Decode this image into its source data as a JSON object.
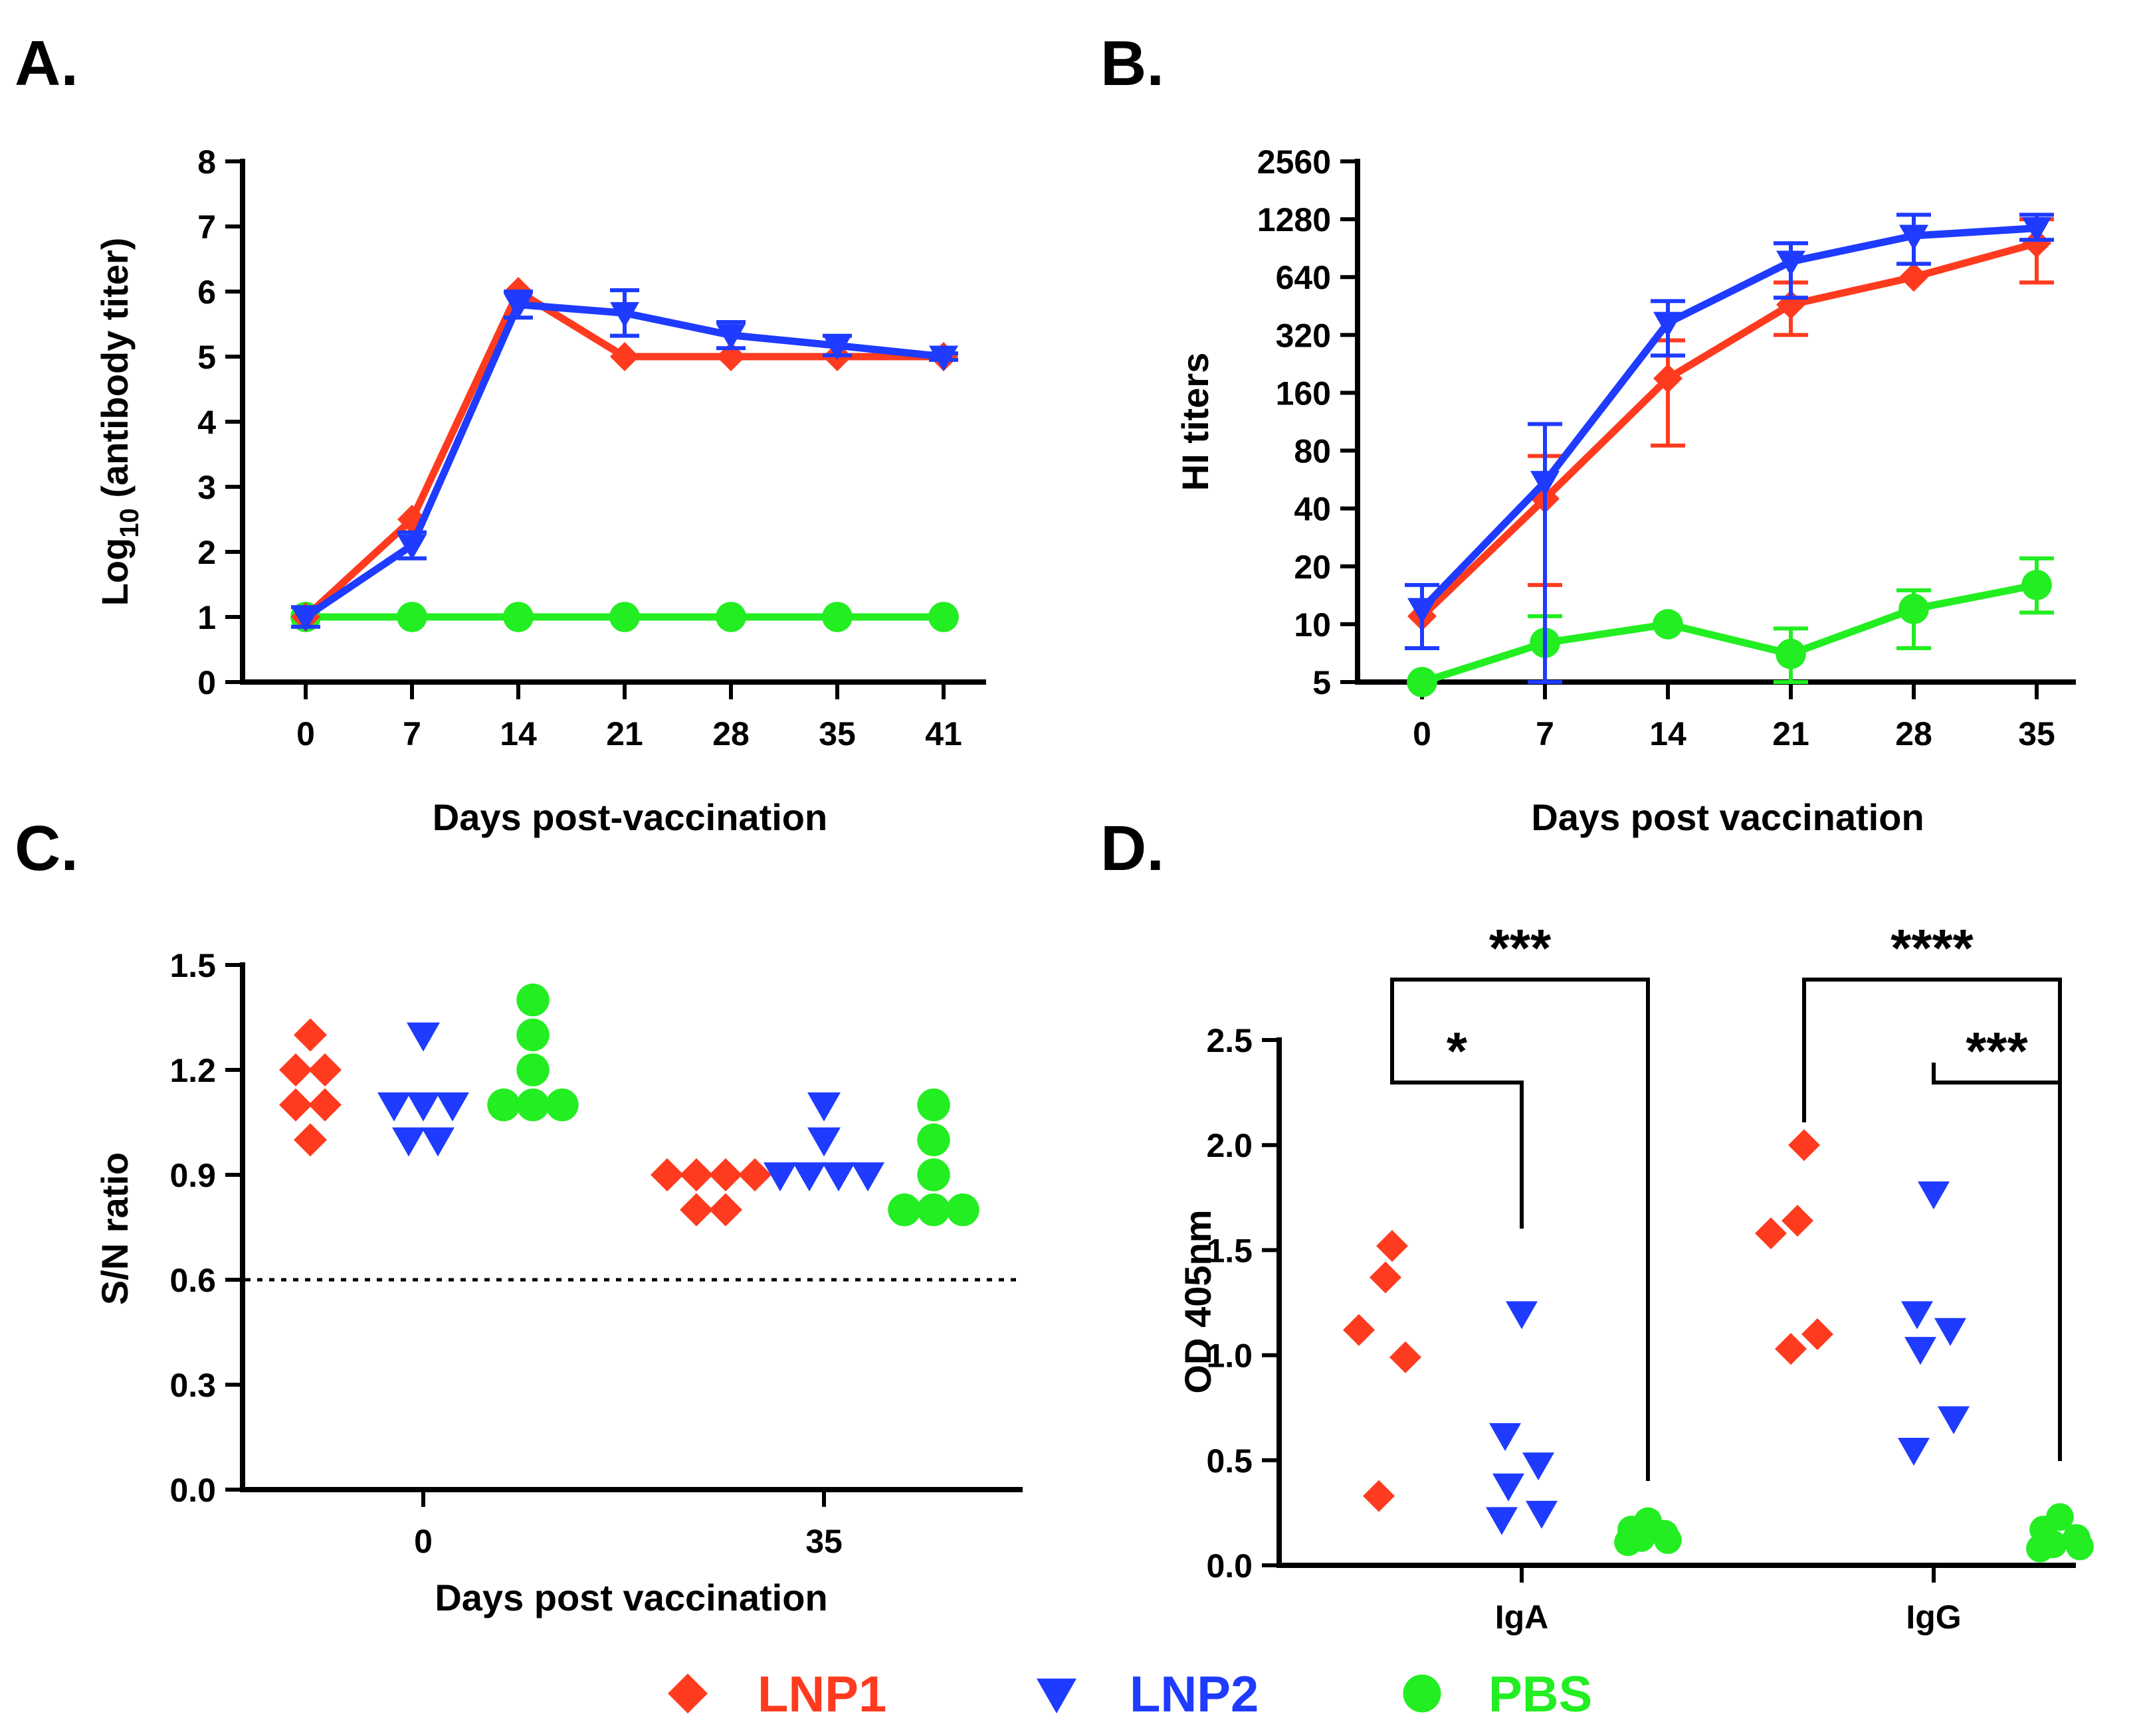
{
  "colors": {
    "lnp1": "#FF3B1F",
    "lnp2": "#1E3BFF",
    "pbs": "#22EE22",
    "axis": "#000000"
  },
  "legend": [
    {
      "label": "LNP1",
      "color": "#FF3B1F",
      "marker": "diamond"
    },
    {
      "label": "LNP2",
      "color": "#1E3BFF",
      "marker": "triangle-down"
    },
    {
      "label": "PBS",
      "color": "#22EE22",
      "marker": "circle"
    }
  ],
  "chart_data": [
    {
      "panel": "A.",
      "type": "line",
      "xlabel": "Days post-vaccination",
      "ylabel_main": "Log",
      "ylabel_sub": "10",
      "ylabel_rest": " (antibody titer)",
      "x": [
        0,
        7,
        14,
        21,
        28,
        35,
        41
      ],
      "ylim": [
        0,
        8
      ],
      "yticks": [
        "0",
        "1",
        "2",
        "3",
        "4",
        "5",
        "6",
        "7",
        "8"
      ],
      "series": [
        {
          "name": "LNP1",
          "color": "#FF3B1F",
          "marker": "diamond",
          "values": [
            1,
            2.5,
            6,
            5,
            5,
            5,
            5
          ],
          "err": [
            0,
            0,
            0,
            0,
            0,
            0,
            0
          ]
        },
        {
          "name": "LNP2",
          "color": "#1E3BFF",
          "marker": "triangle-down",
          "values": [
            1,
            2.1,
            5.8,
            5.67,
            5.33,
            5.17,
            5
          ],
          "err": [
            0.15,
            0.2,
            0.2,
            0.35,
            0.2,
            0.15,
            0.05
          ]
        },
        {
          "name": "PBS",
          "color": "#22EE22",
          "marker": "circle",
          "values": [
            1,
            1,
            1,
            1,
            1,
            1,
            1
          ],
          "err": [
            0,
            0,
            0,
            0,
            0,
            0,
            0
          ]
        }
      ]
    },
    {
      "panel": "B.",
      "type": "line",
      "scale": "log2",
      "xlabel": "Days post vaccination",
      "ylabel": "HI titers",
      "x": [
        0,
        7,
        14,
        21,
        28,
        35
      ],
      "ylim": [
        5,
        2560
      ],
      "yticks": [
        "5",
        "10",
        "20",
        "40",
        "80",
        "160",
        "320",
        "640",
        "1280",
        "2560"
      ],
      "yticks_values": [
        5,
        10,
        20,
        40,
        80,
        160,
        320,
        640,
        1280,
        2560
      ],
      "series": [
        {
          "name": "LNP1",
          "color": "#FF3B1F",
          "marker": "diamond",
          "values": [
            11,
            45,
            190,
            460,
            640,
            960
          ],
          "lo": [
            11,
            16,
            85,
            320,
            640,
            600
          ],
          "hi": [
            11,
            75,
            300,
            600,
            640,
            1280
          ]
        },
        {
          "name": "LNP2",
          "color": "#1E3BFF",
          "marker": "triangle-down",
          "values": [
            12,
            55,
            370,
            770,
            1050,
            1150
          ],
          "lo": [
            7.5,
            5,
            250,
            500,
            750,
            1000
          ],
          "hi": [
            16,
            110,
            480,
            960,
            1350,
            1350
          ]
        },
        {
          "name": "PBS",
          "color": "#22EE22",
          "marker": "circle",
          "values": [
            5,
            8,
            10,
            7,
            12,
            16
          ],
          "lo": [
            5,
            5,
            10,
            5,
            7.5,
            11.5
          ],
          "hi": [
            5,
            11,
            10,
            9.5,
            15,
            22
          ]
        }
      ]
    },
    {
      "panel": "C.",
      "type": "scatter",
      "xlabel": "Days post vaccination",
      "ylabel": "S/N ratio",
      "categories": [
        "0",
        "35"
      ],
      "ylim": [
        0,
        1.5
      ],
      "yticks": [
        "0.0",
        "0.3",
        "0.6",
        "0.9",
        "1.2",
        "1.5"
      ],
      "yticks_values": [
        0,
        0.3,
        0.6,
        0.9,
        1.2,
        1.5
      ],
      "cutoff": 0.6,
      "groups": [
        {
          "category": "0",
          "name": "LNP1",
          "color": "#FF3B1F",
          "marker": "diamond",
          "values": [
            1.3,
            1.2,
            1.2,
            1.1,
            1.1,
            1.0
          ]
        },
        {
          "category": "0",
          "name": "LNP2",
          "color": "#1E3BFF",
          "marker": "triangle-down",
          "values": [
            1.3,
            1.1,
            1.1,
            1.1,
            1.0,
            1.0
          ]
        },
        {
          "category": "0",
          "name": "PBS",
          "color": "#22EE22",
          "marker": "circle",
          "values": [
            1.4,
            1.3,
            1.2,
            1.1,
            1.1,
            1.1
          ]
        },
        {
          "category": "35",
          "name": "LNP1",
          "color": "#FF3B1F",
          "marker": "diamond",
          "values": [
            0.9,
            0.9,
            0.9,
            0.9,
            0.8,
            0.8
          ]
        },
        {
          "category": "35",
          "name": "LNP2",
          "color": "#1E3BFF",
          "marker": "triangle-down",
          "values": [
            1.1,
            1.0,
            0.9,
            0.9,
            0.9,
            0.9
          ]
        },
        {
          "category": "35",
          "name": "PBS",
          "color": "#22EE22",
          "marker": "circle",
          "values": [
            1.1,
            1.0,
            0.9,
            0.8,
            0.8,
            0.8
          ]
        }
      ]
    },
    {
      "panel": "D.",
      "type": "scatter",
      "xlabel": "",
      "ylabel": "OD 405nm",
      "categories": [
        "IgA",
        "IgG"
      ],
      "ylim": [
        0,
        2.5
      ],
      "yticks": [
        "0.0",
        "0.5",
        "1.0",
        "1.5",
        "2.0",
        "2.5"
      ],
      "yticks_values": [
        0,
        0.5,
        1.0,
        1.5,
        2.0,
        2.5
      ],
      "groups": [
        {
          "category": "IgA",
          "name": "LNP1",
          "color": "#FF3B1F",
          "marker": "diamond",
          "values": [
            1.52,
            1.37,
            1.12,
            0.99,
            0.33
          ]
        },
        {
          "category": "IgA",
          "name": "LNP2",
          "color": "#1E3BFF",
          "marker": "triangle-down",
          "values": [
            1.2,
            0.62,
            0.48,
            0.38,
            0.25,
            0.22
          ]
        },
        {
          "category": "IgA",
          "name": "PBS",
          "color": "#22EE22",
          "marker": "circle",
          "values": [
            0.21,
            0.17,
            0.15,
            0.13,
            0.12,
            0.11
          ]
        },
        {
          "category": "IgG",
          "name": "LNP1",
          "color": "#FF3B1F",
          "marker": "diamond",
          "values": [
            2.0,
            1.64,
            1.58,
            1.1,
            1.03
          ]
        },
        {
          "category": "IgG",
          "name": "LNP2",
          "color": "#1E3BFF",
          "marker": "triangle-down",
          "values": [
            1.77,
            1.2,
            1.12,
            1.03,
            0.7,
            0.55
          ]
        },
        {
          "category": "IgG",
          "name": "PBS",
          "color": "#22EE22",
          "marker": "circle",
          "values": [
            0.23,
            0.17,
            0.13,
            0.1,
            0.09,
            0.08
          ]
        }
      ],
      "significance": [
        {
          "category": "IgA",
          "from": "LNP1",
          "to": "PBS",
          "label": "***"
        },
        {
          "category": "IgA",
          "from": "LNP1",
          "to": "LNP2",
          "label": "*"
        },
        {
          "category": "IgG",
          "from": "LNP1",
          "to": "PBS",
          "label": "****"
        },
        {
          "category": "IgG",
          "from": "LNP2",
          "to": "PBS",
          "label": "***"
        }
      ]
    }
  ]
}
